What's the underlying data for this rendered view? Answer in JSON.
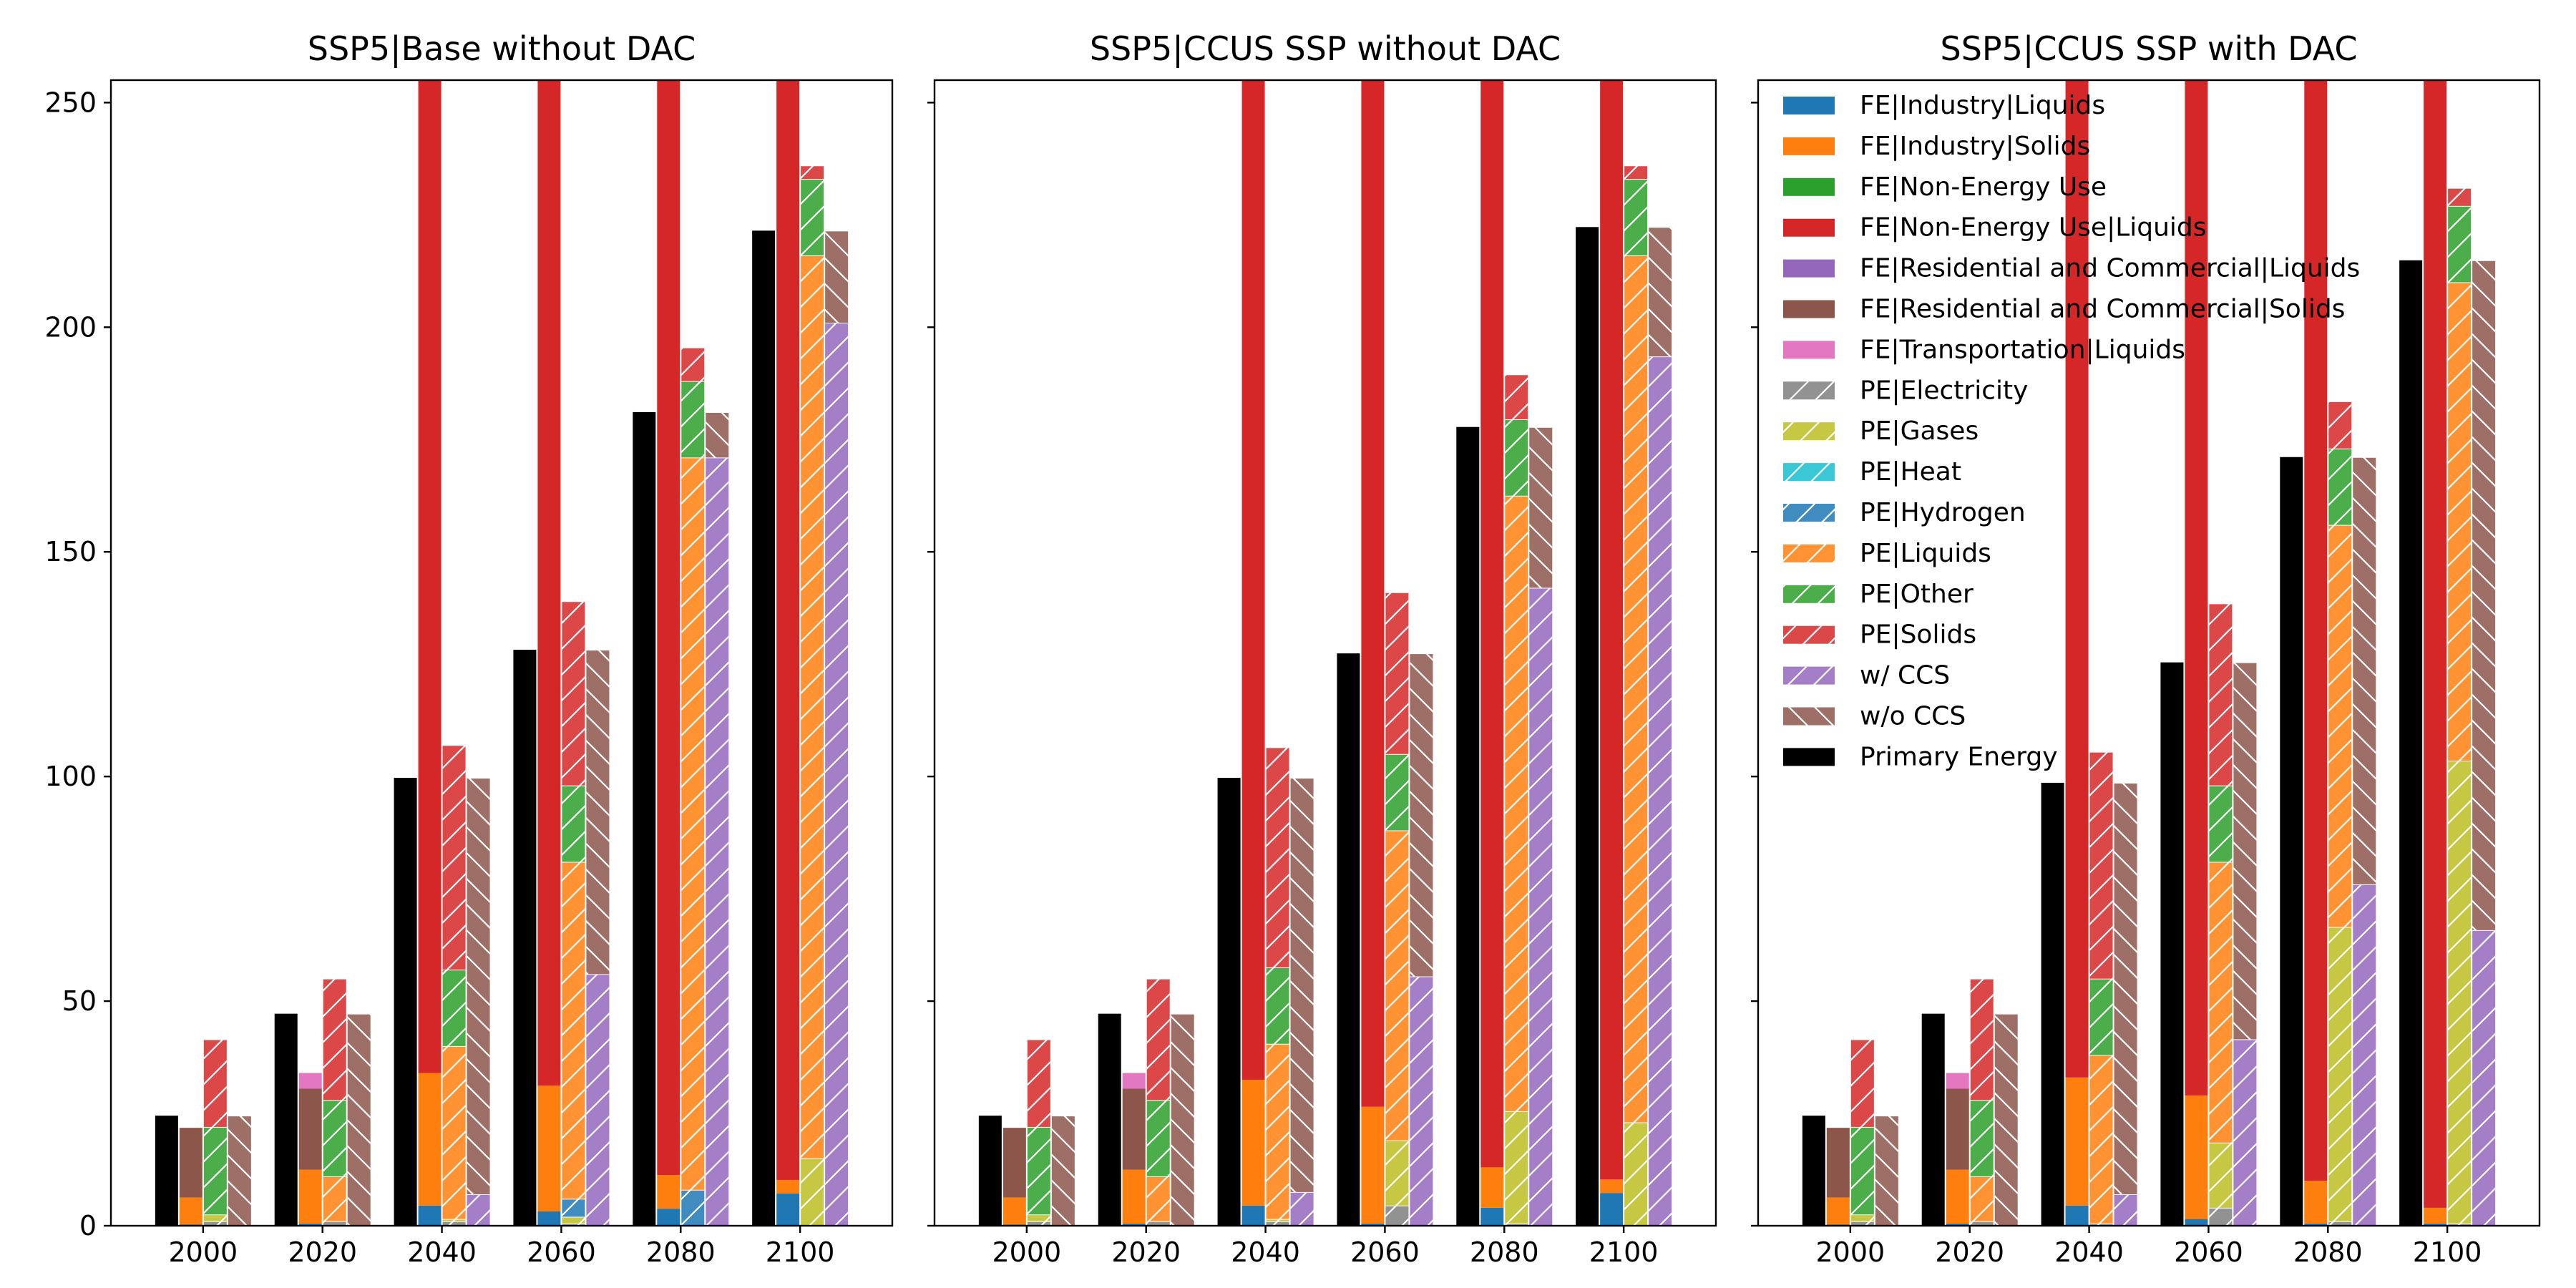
{
  "chart_data": [
    {
      "type": "bar",
      "title": "SSP5|Base without DAC",
      "xlabel": "",
      "ylabel": "",
      "ylim": [
        0,
        255
      ],
      "yticks": [
        0,
        50,
        100,
        150,
        200,
        250
      ],
      "categories": [
        "2000",
        "2020",
        "2040",
        "2060",
        "2080",
        "2100"
      ],
      "bar_groups": {
        "primary_energy": {
          "series": [
            "Primary Energy"
          ],
          "values": [
            [
              24.5,
              47.2,
              99.7,
              128.2,
              181.1,
              221.5
            ]
          ]
        },
        "final_energy": {
          "series": [
            "FE|Industry|Liquids",
            "FE|Industry|Solids",
            "FE|Non-Energy Use",
            "FE|Non-Energy Use|Liquids",
            "FE|Residential and Commercial|Liquids",
            "FE|Residential and Commercial|Solids",
            "FE|Transportation|Liquids"
          ],
          "values": [
            [
              0.3,
              0.5,
              4.5,
              3.2,
              3.8,
              7.2
            ],
            [
              6.0,
              12.0,
              29.5,
              28.0,
              7.5,
              3.0
            ],
            [
              0.0,
              0.0,
              0.0,
              0.0,
              0.0,
              0.0
            ],
            [
              0.0,
              0.0,
              1500,
              1500,
              1500,
              1500
            ],
            [
              0.0,
              0.0,
              0.0,
              0.0,
              0.0,
              0.0
            ],
            [
              15.5,
              18.0,
              0.0,
              0.0,
              0.0,
              0.0
            ],
            [
              0.0,
              3.5,
              0.0,
              0.0,
              0.0,
              0.0
            ]
          ]
        },
        "primary_by_carrier": {
          "series": [
            "PE|Electricity",
            "PE|Gases",
            "PE|Heat",
            "PE|Hydrogen",
            "PE|Liquids",
            "PE|Other",
            "PE|Solids"
          ],
          "values": [
            [
              1.0,
              1.0,
              1.0,
              0.5,
              0.0,
              0.0
            ],
            [
              1.5,
              0.0,
              0.5,
              1.5,
              0.0,
              15.0
            ],
            [
              0.0,
              0.0,
              0.0,
              0.0,
              0.0,
              0.0
            ],
            [
              0.0,
              0.0,
              0.0,
              4.0,
              8.0,
              0.0
            ],
            [
              0.0,
              10.0,
              38.5,
              75.0,
              163.0,
              201.0
            ],
            [
              19.5,
              17.0,
              17.0,
              17.0,
              17.0,
              17.0
            ],
            [
              19.5,
              27.0,
              50.0,
              41.0,
              7.5,
              3.0
            ]
          ]
        },
        "ccs": {
          "series": [
            "w/ CCS",
            "w/o CCS"
          ],
          "values": [
            [
              0.0,
              0.0,
              7.0,
              56.0,
              171.0,
              201.0
            ],
            [
              24.5,
              47.2,
              92.7,
              72.2,
              10.1,
              20.5
            ]
          ]
        }
      }
    },
    {
      "type": "bar",
      "title": "SSP5|CCUS SSP without DAC",
      "xlabel": "",
      "ylabel": "",
      "ylim": [
        0,
        255
      ],
      "yticks": [
        0,
        50,
        100,
        150,
        200,
        250
      ],
      "categories": [
        "2000",
        "2020",
        "2040",
        "2060",
        "2080",
        "2100"
      ],
      "bar_groups": {
        "primary_energy": {
          "series": [
            "Primary Energy"
          ],
          "values": [
            [
              24.5,
              47.2,
              99.7,
              127.4,
              177.8,
              222.3
            ]
          ]
        },
        "final_energy": {
          "series": [
            "FE|Industry|Liquids",
            "FE|Industry|Solids",
            "FE|Non-Energy Use",
            "FE|Non-Energy Use|Liquids",
            "FE|Residential and Commercial|Liquids",
            "FE|Residential and Commercial|Solids",
            "FE|Transportation|Liquids"
          ],
          "values": [
            [
              0.3,
              0.5,
              4.5,
              0.5,
              4.0,
              7.3
            ],
            [
              6.0,
              12.0,
              28.0,
              26.0,
              9.0,
              3.0
            ],
            [
              0.0,
              0.0,
              0.0,
              0.0,
              0.0,
              0.0
            ],
            [
              0.0,
              0.0,
              1500,
              1500,
              1500,
              1500
            ],
            [
              0.0,
              0.0,
              0.0,
              0.0,
              0.0,
              0.0
            ],
            [
              15.5,
              18.0,
              0.0,
              0.0,
              0.0,
              0.0
            ],
            [
              0.0,
              3.5,
              0.0,
              0.0,
              0.0,
              0.0
            ]
          ]
        },
        "primary_by_carrier": {
          "series": [
            "PE|Electricity",
            "PE|Gases",
            "PE|Heat",
            "PE|Hydrogen",
            "PE|Liquids",
            "PE|Other",
            "PE|Solids"
          ],
          "values": [
            [
              1.0,
              1.0,
              1.0,
              4.5,
              0.5,
              0.0
            ],
            [
              1.5,
              0.0,
              0.5,
              14.5,
              25.0,
              23.0
            ],
            [
              0.0,
              0.0,
              0.0,
              0.0,
              0.0,
              0.0
            ],
            [
              0.0,
              0.0,
              0.0,
              0.0,
              0.0,
              0.0
            ],
            [
              0.0,
              10.0,
              39.0,
              69.0,
              137.0,
              193.0
            ],
            [
              19.5,
              17.0,
              17.0,
              17.0,
              17.0,
              17.0
            ],
            [
              19.5,
              27.0,
              49.0,
              36.0,
              10.0,
              3.0
            ]
          ]
        },
        "ccs": {
          "series": [
            "w/ CCS",
            "w/o CCS"
          ],
          "values": [
            [
              0.0,
              0.0,
              7.5,
              55.5,
              142.0,
              193.5
            ],
            [
              24.5,
              47.2,
              92.2,
              71.9,
              35.8,
              28.8
            ]
          ]
        }
      }
    },
    {
      "type": "bar",
      "title": "SSP5|CCUS SSP with DAC",
      "xlabel": "",
      "ylabel": "",
      "ylim": [
        0,
        255
      ],
      "yticks": [
        0,
        50,
        100,
        150,
        200,
        250
      ],
      "categories": [
        "2000",
        "2020",
        "2040",
        "2060",
        "2080",
        "2100"
      ],
      "bar_groups": {
        "primary_energy": {
          "series": [
            "Primary Energy"
          ],
          "values": [
            [
              24.5,
              47.2,
              98.6,
              125.4,
              171.1,
              214.9
            ]
          ]
        },
        "final_energy": {
          "series": [
            "FE|Industry|Liquids",
            "FE|Industry|Solids",
            "FE|Non-Energy Use",
            "FE|Non-Energy Use|Liquids",
            "FE|Residential and Commercial|Liquids",
            "FE|Residential and Commercial|Solids",
            "FE|Transportation|Liquids"
          ],
          "values": [
            [
              0.3,
              0.5,
              4.5,
              1.5,
              0.5,
              0.5
            ],
            [
              6.0,
              12.0,
              28.5,
              27.5,
              9.5,
              3.5
            ],
            [
              0.0,
              0.0,
              0.0,
              0.0,
              0.0,
              0.0
            ],
            [
              0.0,
              0.0,
              1500,
              1500,
              1500,
              1500
            ],
            [
              0.0,
              0.0,
              0.0,
              0.0,
              0.0,
              0.0
            ],
            [
              15.5,
              18.0,
              0.0,
              0.0,
              0.0,
              0.0
            ],
            [
              0.0,
              3.5,
              0.0,
              0.0,
              0.0,
              0.0
            ]
          ]
        },
        "primary_by_carrier": {
          "series": [
            "PE|Electricity",
            "PE|Gases",
            "PE|Heat",
            "PE|Hydrogen",
            "PE|Liquids",
            "PE|Other",
            "PE|Solids"
          ],
          "values": [
            [
              1.0,
              1.0,
              0.5,
              4.0,
              1.0,
              0.5
            ],
            [
              1.5,
              0.0,
              0.0,
              14.5,
              65.5,
              103.0
            ],
            [
              0.0,
              0.0,
              0.0,
              0.0,
              0.0,
              0.0
            ],
            [
              0.0,
              0.0,
              0.0,
              0.0,
              0.0,
              0.0
            ],
            [
              0.0,
              10.0,
              37.5,
              62.5,
              89.5,
              106.5
            ],
            [
              19.5,
              17.0,
              17.0,
              17.0,
              17.0,
              17.0
            ],
            [
              19.5,
              27.0,
              50.5,
              40.5,
              10.5,
              4.0
            ]
          ]
        },
        "ccs": {
          "series": [
            "w/ CCS",
            "w/o CCS"
          ],
          "values": [
            [
              0.0,
              0.0,
              7.0,
              41.5,
              76.0,
              65.8
            ],
            [
              24.5,
              47.2,
              91.6,
              83.9,
              95.1,
              149.1
            ]
          ]
        }
      }
    }
  ],
  "legend": {
    "placement": "upper-left of third panel",
    "entries": [
      {
        "label": "FE|Industry|Liquids",
        "color": "#1f77b4",
        "hatch": false
      },
      {
        "label": "FE|Industry|Solids",
        "color": "#ff7f0e",
        "hatch": false
      },
      {
        "label": "FE|Non-Energy Use",
        "color": "#2ca02c",
        "hatch": false
      },
      {
        "label": "FE|Non-Energy Use|Liquids",
        "color": "#d62728",
        "hatch": false
      },
      {
        "label": "FE|Residential and Commercial|Liquids",
        "color": "#9467bd",
        "hatch": false
      },
      {
        "label": "FE|Residential and Commercial|Solids",
        "color": "#8c564b",
        "hatch": false
      },
      {
        "label": "FE|Transportation|Liquids",
        "color": "#e377c2",
        "hatch": false
      },
      {
        "label": "PE|Electricity",
        "color": "#7f7f7f",
        "hatch": true
      },
      {
        "label": "PE|Gases",
        "color": "#bcbd22",
        "hatch": true
      },
      {
        "label": "PE|Heat",
        "color": "#17becf",
        "hatch": true
      },
      {
        "label": "PE|Hydrogen",
        "color": "#1f77b4",
        "hatch": true
      },
      {
        "label": "PE|Liquids",
        "color": "#ff7f0e",
        "hatch": true
      },
      {
        "label": "PE|Other",
        "color": "#2ca02c",
        "hatch": true
      },
      {
        "label": "PE|Solids",
        "color": "#d62728",
        "hatch": true
      },
      {
        "label": "w/ CCS",
        "color": "#9467bd",
        "hatch": true
      },
      {
        "label": "w/o CCS",
        "color": "#8c564b",
        "hatch": true
      },
      {
        "label": "Primary Energy",
        "color": "#000000",
        "hatch": false
      }
    ]
  }
}
